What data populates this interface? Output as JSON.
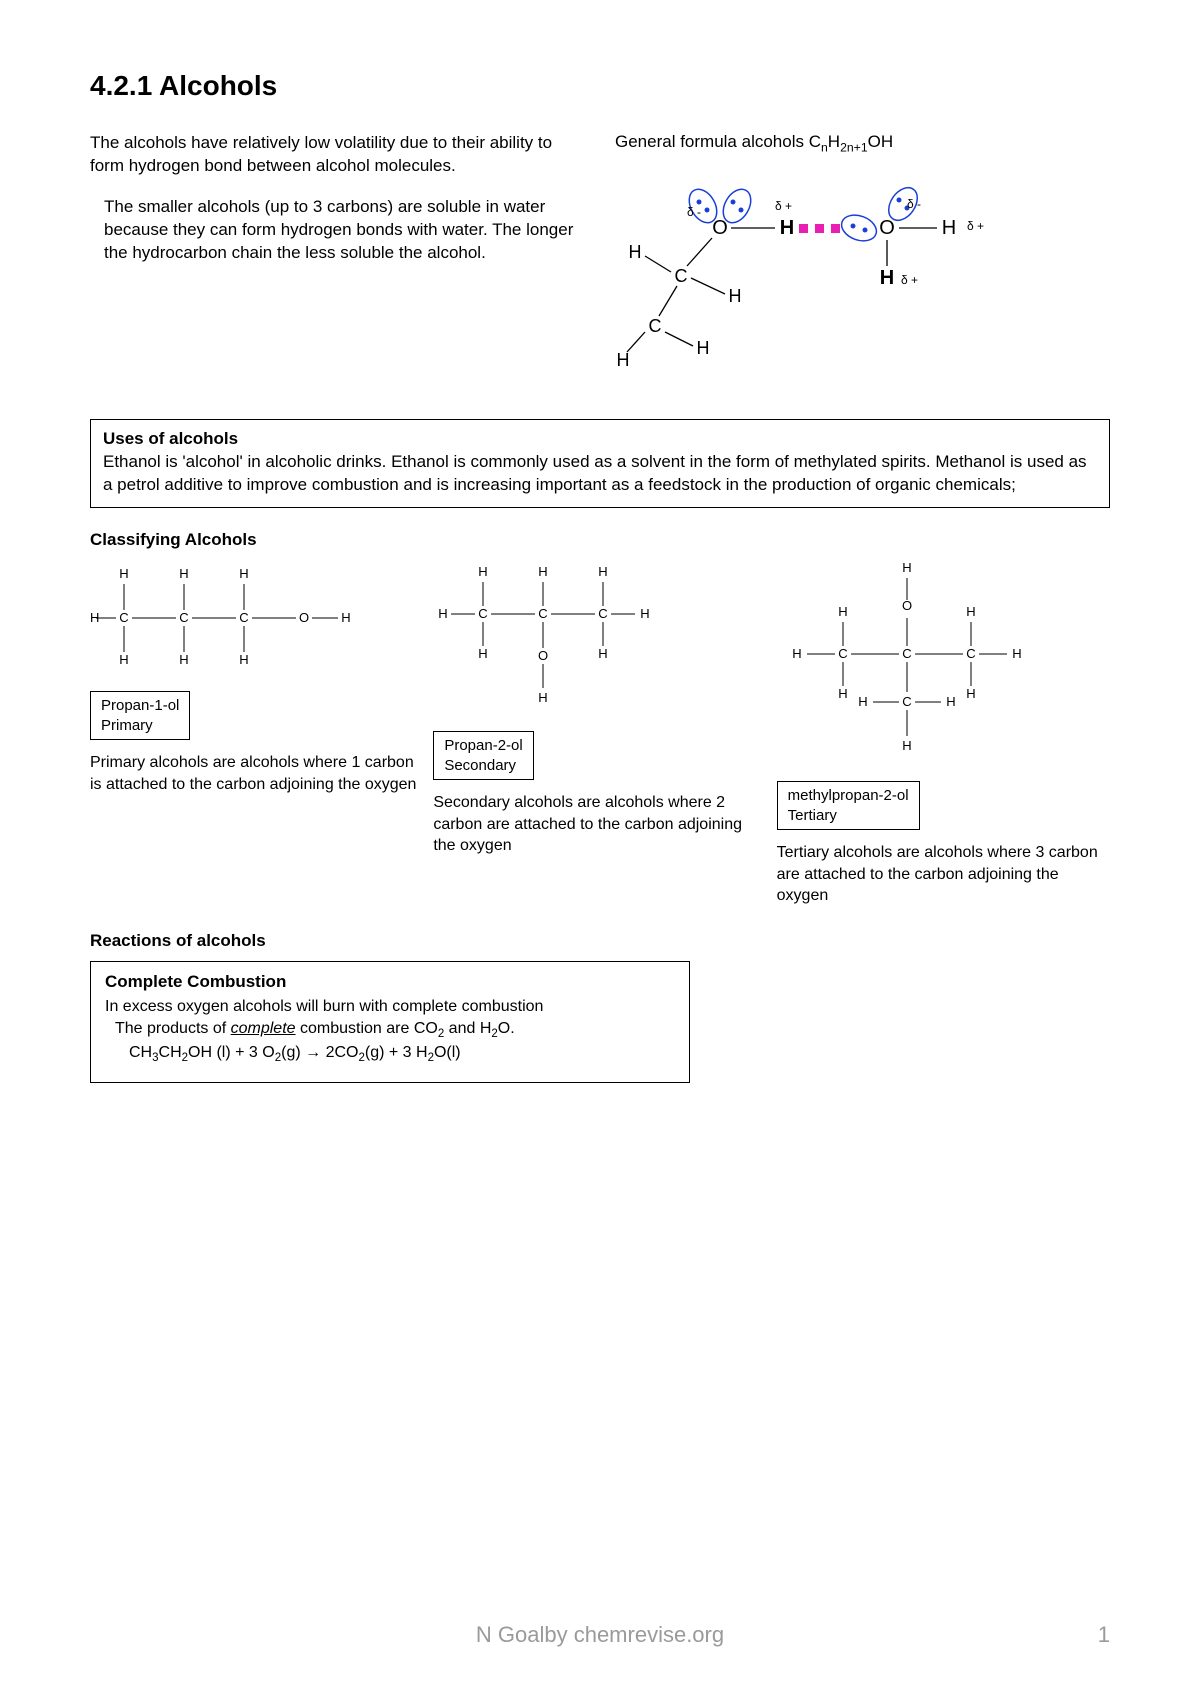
{
  "title": "4.2.1 Alcohols",
  "generalFormula": "General formula alcohols C<sub>n</sub>H<sub>2n+1</sub>OH",
  "para1": "The alcohols have relatively low volatility due to their ability to form hydrogen bond between alcohol molecules.",
  "para2": "The smaller alcohols (up to 3 carbons) are soluble in water because they can form hydrogen bonds with water. The longer the hydrocarbon chain the less soluble the alcohol.",
  "usesBox": {
    "title": "Uses of alcohols",
    "body": "Ethanol is 'alcohol' in alcoholic drinks. Ethanol is commonly used as a solvent in the form of methylated spirits. Methanol is used as a petrol additive to improve combustion and is increasing important as a feedstock in the production of organic chemicals;"
  },
  "classifyHeading": "Classifying Alcohols",
  "primary": {
    "label1": "Propan-1-ol",
    "label2": "Primary",
    "desc": "Primary alcohols are alcohols where 1 carbon is attached to the carbon adjoining the oxygen"
  },
  "secondary": {
    "label1": "Propan-2-ol",
    "label2": "Secondary",
    "desc": "Secondary alcohols are alcohols where 2 carbon are attached to the carbon adjoining the oxygen"
  },
  "tertiary": {
    "label1": "methylpropan-2-ol",
    "label2": "Tertiary",
    "desc": "Tertiary alcohols are alcohols where 3 carbon are attached to the carbon adjoining the oxygen"
  },
  "reactionsHeading": "Reactions of alcohols",
  "combustion": {
    "title": "Complete Combustion",
    "line1": "In excess oxygen alcohols will burn with complete combustion",
    "line2": "The products of <span class='underline'>complete</span> combustion are CO<sub>2</sub> and H<sub>2</sub>O.",
    "equation": "CH<sub>3</sub>CH<sub>2</sub>OH (l)  +  3 O<sub>2</sub>(g)  →  2CO<sub>2</sub>(g)  +  3 H<sub>2</sub>O(l)"
  },
  "footer": "N Goalby chemrevise.org",
  "pageNumber": "1",
  "colors": {
    "hbond": "#e91fb4",
    "lonepair": "#1a3fd9",
    "text": "#000000"
  }
}
